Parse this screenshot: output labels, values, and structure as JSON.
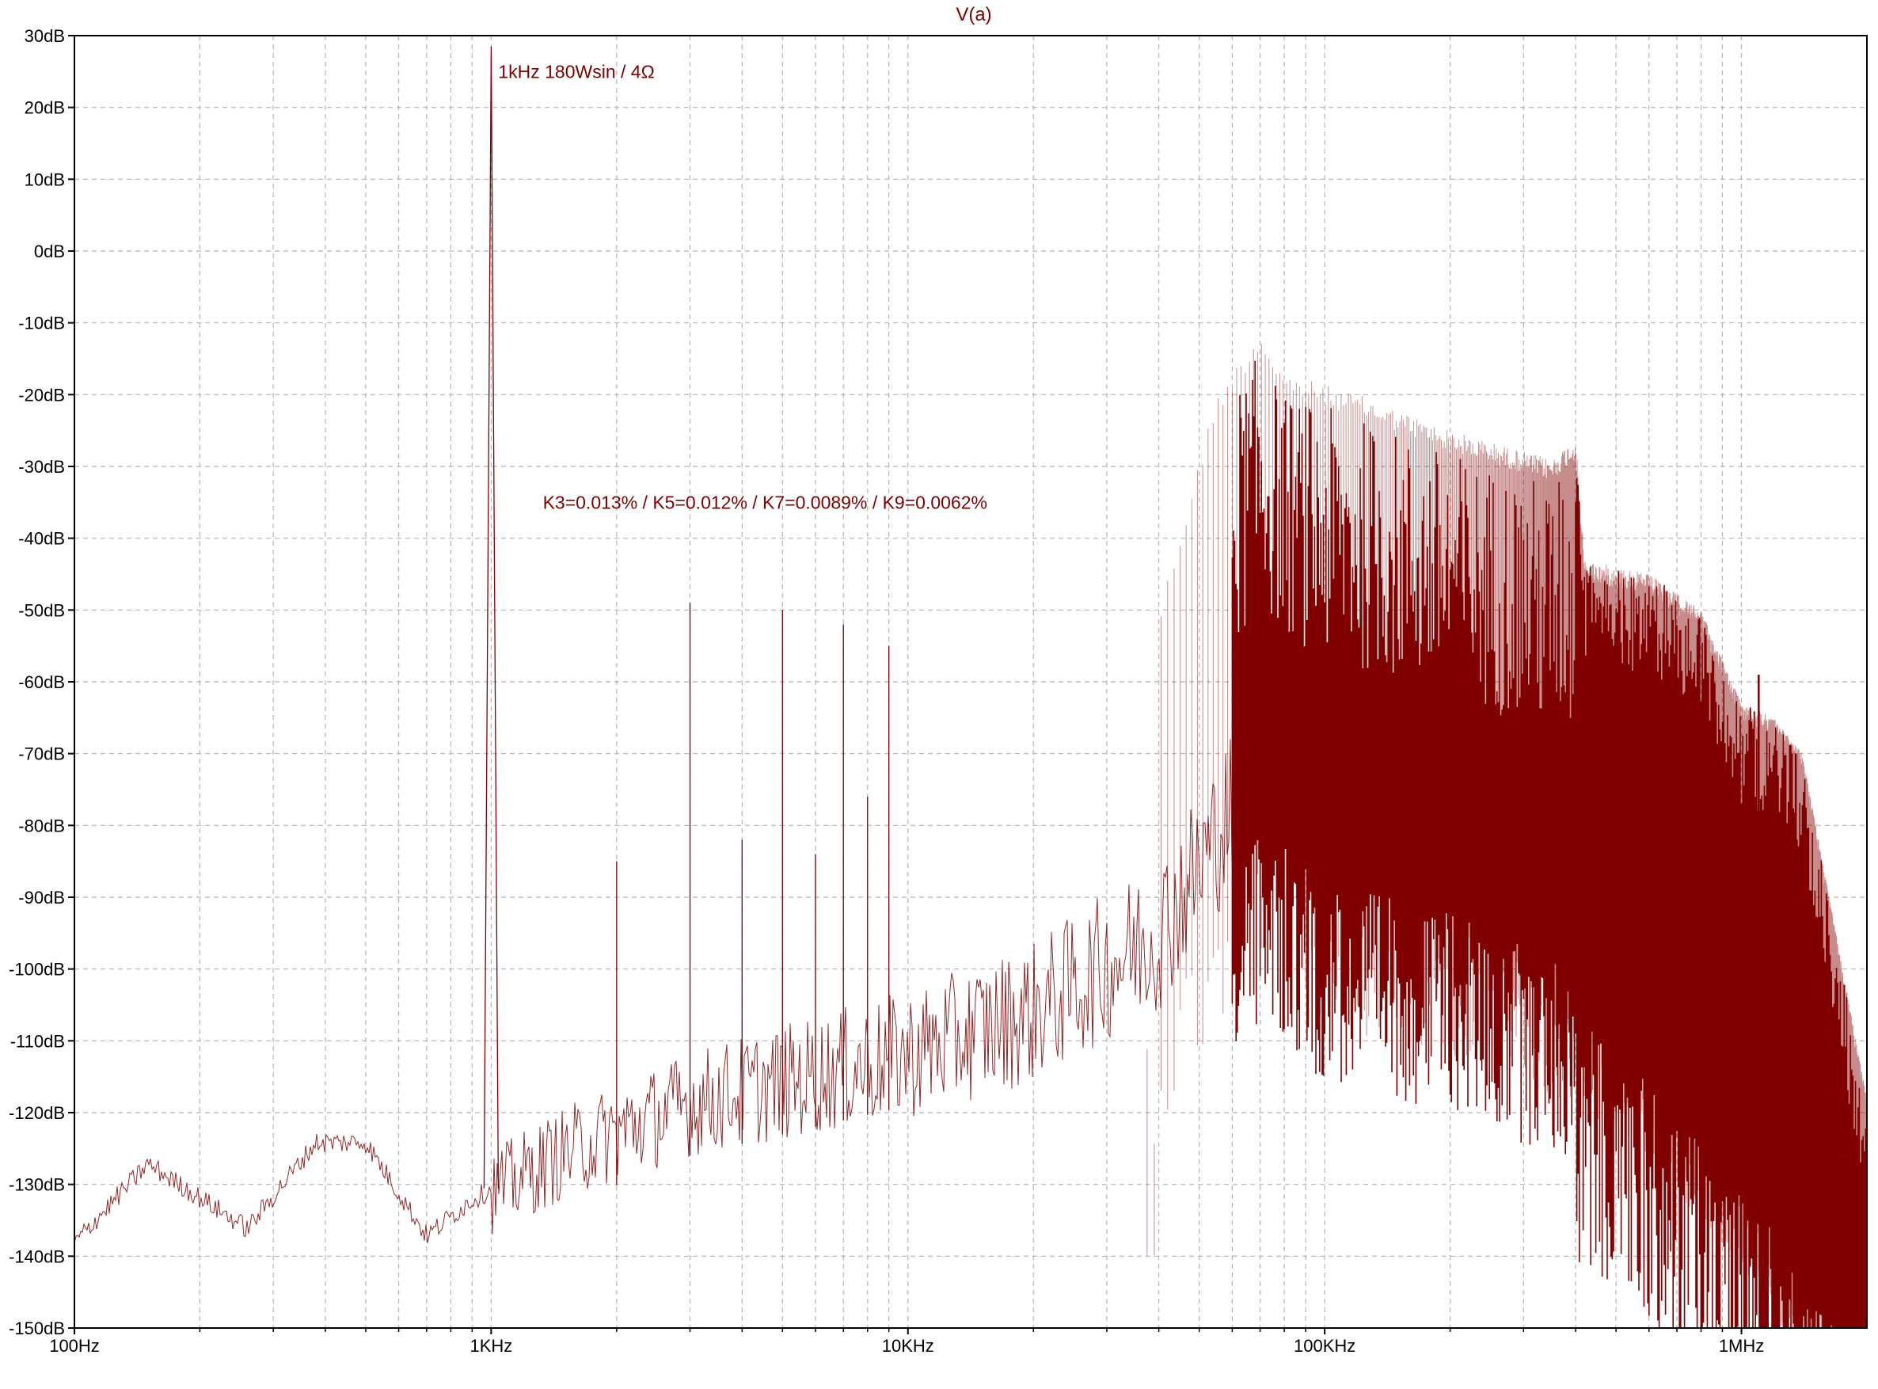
{
  "chart_data": {
    "type": "line",
    "title": "V(a)",
    "xlabel": "",
    "ylabel": "",
    "x_scale": "log",
    "xlim": [
      100,
      2000000
    ],
    "ylim": [
      -150,
      30
    ],
    "grid": true,
    "trace_color": "#800000",
    "x_ticks": [
      {
        "value": 100,
        "label": "100Hz"
      },
      {
        "value": 1000,
        "label": "1KHz"
      },
      {
        "value": 10000,
        "label": "10KHz"
      },
      {
        "value": 100000,
        "label": "100KHz"
      },
      {
        "value": 1000000,
        "label": "1MHz"
      }
    ],
    "y_ticks": [
      {
        "value": 30,
        "label": "30dB"
      },
      {
        "value": 20,
        "label": "20dB"
      },
      {
        "value": 10,
        "label": "10dB"
      },
      {
        "value": 0,
        "label": "0dB"
      },
      {
        "value": -10,
        "label": "-10dB"
      },
      {
        "value": -20,
        "label": "-20dB"
      },
      {
        "value": -30,
        "label": "-30dB"
      },
      {
        "value": -40,
        "label": "-40dB"
      },
      {
        "value": -50,
        "label": "-50dB"
      },
      {
        "value": -60,
        "label": "-60dB"
      },
      {
        "value": -70,
        "label": "-70dB"
      },
      {
        "value": -80,
        "label": "-80dB"
      },
      {
        "value": -90,
        "label": "-90dB"
      },
      {
        "value": -100,
        "label": "-100dB"
      },
      {
        "value": -110,
        "label": "-110dB"
      },
      {
        "value": -120,
        "label": "-120dB"
      },
      {
        "value": -130,
        "label": "-130dB"
      },
      {
        "value": -140,
        "label": "-140dB"
      },
      {
        "value": -150,
        "label": "-150dB"
      }
    ],
    "annotations": [
      {
        "text": "1kHz  180Wsin / 4Ω",
        "x": 1040,
        "y": 25
      },
      {
        "text": "K3=0.013% / K5=0.012% / K7=0.0089% / K9=0.0062%",
        "x": 1330,
        "y": -35
      }
    ],
    "harmonics": [
      {
        "x": 1000,
        "y": 28.5
      },
      {
        "x": 2000,
        "y": -85
      },
      {
        "x": 3000,
        "y": -49
      },
      {
        "x": 4000,
        "y": -82
      },
      {
        "x": 5000,
        "y": -50
      },
      {
        "x": 6000,
        "y": -84
      },
      {
        "x": 7000,
        "y": -52
      },
      {
        "x": 8000,
        "y": -76
      },
      {
        "x": 9000,
        "y": -55
      }
    ],
    "noise_floor": [
      {
        "x": 100,
        "y": -138
      },
      {
        "x": 150,
        "y": -127
      },
      {
        "x": 260,
        "y": -136
      },
      {
        "x": 380,
        "y": -124
      },
      {
        "x": 500,
        "y": -124
      },
      {
        "x": 700,
        "y": -137
      },
      {
        "x": 900,
        "y": -132
      },
      {
        "x": 1500,
        "y": -125
      },
      {
        "x": 3000,
        "y": -118
      },
      {
        "x": 10000,
        "y": -111
      },
      {
        "x": 20000,
        "y": -105
      },
      {
        "x": 40000,
        "y": -94
      },
      {
        "x": 70000,
        "y": -70
      },
      {
        "x": 100000,
        "y": -78
      },
      {
        "x": 200000,
        "y": -82
      },
      {
        "x": 500000,
        "y": -92
      },
      {
        "x": 1000000,
        "y": -112
      },
      {
        "x": 2000000,
        "y": -138
      }
    ],
    "switching_envelope": [
      {
        "x": 40000,
        "y": -50
      },
      {
        "x": 55000,
        "y": -20
      },
      {
        "x": 70000,
        "y": -11
      },
      {
        "x": 80000,
        "y": -17
      },
      {
        "x": 120000,
        "y": -20
      },
      {
        "x": 200000,
        "y": -25
      },
      {
        "x": 350000,
        "y": -29
      },
      {
        "x": 400000,
        "y": -26
      },
      {
        "x": 420000,
        "y": -43
      },
      {
        "x": 600000,
        "y": -45
      },
      {
        "x": 800000,
        "y": -50
      },
      {
        "x": 1000000,
        "y": -63
      },
      {
        "x": 1200000,
        "y": -65
      },
      {
        "x": 1400000,
        "y": -70
      },
      {
        "x": 2000000,
        "y": -118
      }
    ],
    "spurs": [
      {
        "x": 1100000,
        "y": -59
      },
      {
        "x": 1350000,
        "y": -70
      }
    ]
  }
}
